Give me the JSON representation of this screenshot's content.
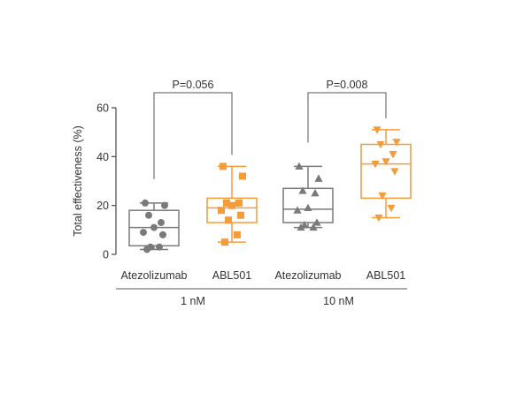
{
  "chart_data": {
    "type": "box",
    "ylabel": "Total effectiveness (%)",
    "ylim": [
      0,
      60
    ],
    "yticks": [
      0,
      20,
      40,
      60
    ],
    "colors": {
      "gray": "#7a7a7a",
      "orange": "#f49b3a"
    },
    "boxes": [
      {
        "label": "Atezolizumab",
        "group": "1 nM",
        "color": "#7a7a7a",
        "marker": "circle",
        "whisker_low": 2,
        "q1": 3.5,
        "median": 11,
        "q3": 18,
        "whisker_high": 21,
        "points": [
          21,
          20,
          16,
          13,
          11,
          9,
          8,
          3,
          3,
          2
        ]
      },
      {
        "label": "ABL501",
        "group": "1 nM",
        "color": "#f49b3a",
        "marker": "square",
        "whisker_low": 5,
        "q1": 13,
        "median": 19,
        "q3": 23,
        "whisker_high": 36,
        "points": [
          36,
          32,
          21,
          21,
          20,
          18,
          16,
          14,
          8,
          5
        ]
      },
      {
        "label": "Atezolizumab",
        "group": "10 nM",
        "color": "#7a7a7a",
        "marker": "triangle-up",
        "whisker_low": 11,
        "q1": 13,
        "median": 18.5,
        "q3": 27,
        "whisker_high": 36,
        "points": [
          36,
          31,
          26,
          25,
          19,
          18,
          13,
          12,
          11,
          11
        ]
      },
      {
        "label": "ABL501",
        "group": "10 nM",
        "color": "#f49b3a",
        "marker": "triangle-down",
        "whisker_low": 15,
        "q1": 23,
        "median": 37,
        "q3": 45,
        "whisker_high": 51,
        "points": [
          51,
          46,
          45,
          41,
          38,
          37,
          34,
          24,
          19,
          15
        ]
      }
    ],
    "groups": [
      {
        "label": "1 nM",
        "boxes": [
          0,
          1
        ]
      },
      {
        "label": "10 nM",
        "boxes": [
          2,
          3
        ]
      }
    ],
    "comparisons": [
      {
        "label": "P=0.056",
        "from": 0,
        "to": 1
      },
      {
        "label": "P=0.008",
        "from": 2,
        "to": 3
      }
    ]
  }
}
